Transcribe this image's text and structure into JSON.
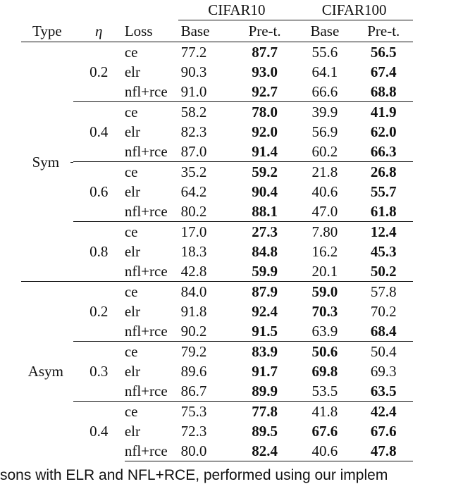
{
  "table": {
    "groups": [
      "CIFAR10",
      "CIFAR100"
    ],
    "headers": {
      "type": "Type",
      "eta": "η",
      "loss": "Loss",
      "c10_base": "Base",
      "c10_pre": "Pre-t.",
      "c100_base": "Base",
      "c100_pre": "Pre-t."
    },
    "sym": {
      "label": "Sym",
      "blocks": [
        {
          "eta": "0.2",
          "rows": [
            {
              "loss": "ce",
              "v": [
                "77.2",
                "87.7",
                "55.6",
                "56.5"
              ],
              "bold": [
                false,
                true,
                false,
                true
              ]
            },
            {
              "loss": "elr",
              "v": [
                "90.3",
                "93.0",
                "64.1",
                "67.4"
              ],
              "bold": [
                false,
                true,
                false,
                true
              ]
            },
            {
              "loss": "nfl+rce",
              "v": [
                "91.0",
                "92.7",
                "66.6",
                "68.8"
              ],
              "bold": [
                false,
                true,
                false,
                true
              ]
            }
          ]
        },
        {
          "eta": "0.4",
          "rows": [
            {
              "loss": "ce",
              "v": [
                "58.2",
                "78.0",
                "39.9",
                "41.9"
              ],
              "bold": [
                false,
                true,
                false,
                true
              ]
            },
            {
              "loss": "elr",
              "v": [
                "82.3",
                "92.0",
                "56.9",
                "62.0"
              ],
              "bold": [
                false,
                true,
                false,
                true
              ]
            },
            {
              "loss": "nfl+rce",
              "v": [
                "87.0",
                "91.4",
                "60.2",
                "66.3"
              ],
              "bold": [
                false,
                true,
                false,
                true
              ]
            }
          ]
        },
        {
          "eta": "0.6",
          "rows": [
            {
              "loss": "ce",
              "v": [
                "35.2",
                "59.2",
                "21.8",
                "26.8"
              ],
              "bold": [
                false,
                true,
                false,
                true
              ]
            },
            {
              "loss": "elr",
              "v": [
                "64.2",
                "90.4",
                "40.6",
                "55.7"
              ],
              "bold": [
                false,
                true,
                false,
                true
              ]
            },
            {
              "loss": "nfl+rce",
              "v": [
                "80.2",
                "88.1",
                "47.0",
                "61.8"
              ],
              "bold": [
                false,
                true,
                false,
                true
              ]
            }
          ]
        },
        {
          "eta": "0.8",
          "rows": [
            {
              "loss": "ce",
              "v": [
                "17.0",
                "27.3",
                "7.80",
                "12.4"
              ],
              "bold": [
                false,
                true,
                false,
                true
              ]
            },
            {
              "loss": "elr",
              "v": [
                "18.3",
                "84.8",
                "16.2",
                "45.3"
              ],
              "bold": [
                false,
                true,
                false,
                true
              ]
            },
            {
              "loss": "nfl+rce",
              "v": [
                "42.8",
                "59.9",
                "20.1",
                "50.2"
              ],
              "bold": [
                false,
                true,
                false,
                true
              ]
            }
          ]
        }
      ]
    },
    "asym": {
      "label": "Asym",
      "blocks": [
        {
          "eta": "0.2",
          "rows": [
            {
              "loss": "ce",
              "v": [
                "84.0",
                "87.9",
                "59.0",
                "57.8"
              ],
              "bold": [
                false,
                true,
                true,
                false
              ]
            },
            {
              "loss": "elr",
              "v": [
                "91.8",
                "92.4",
                "70.3",
                "70.2"
              ],
              "bold": [
                false,
                true,
                true,
                false
              ]
            },
            {
              "loss": "nfl+rce",
              "v": [
                "90.2",
                "91.5",
                "63.9",
                "68.4"
              ],
              "bold": [
                false,
                true,
                false,
                true
              ]
            }
          ]
        },
        {
          "eta": "0.3",
          "rows": [
            {
              "loss": "ce",
              "v": [
                "79.2",
                "83.9",
                "50.6",
                "50.4"
              ],
              "bold": [
                false,
                true,
                true,
                false
              ]
            },
            {
              "loss": "elr",
              "v": [
                "89.6",
                "91.7",
                "69.8",
                "69.3"
              ],
              "bold": [
                false,
                true,
                true,
                false
              ]
            },
            {
              "loss": "nfl+rce",
              "v": [
                "86.7",
                "89.9",
                "53.5",
                "63.5"
              ],
              "bold": [
                false,
                true,
                false,
                true
              ]
            }
          ]
        },
        {
          "eta": "0.4",
          "rows": [
            {
              "loss": "ce",
              "v": [
                "75.3",
                "77.8",
                "41.8",
                "42.4"
              ],
              "bold": [
                false,
                true,
                false,
                true
              ]
            },
            {
              "loss": "elr",
              "v": [
                "72.3",
                "89.5",
                "67.6",
                "67.6"
              ],
              "bold": [
                false,
                true,
                true,
                true
              ]
            },
            {
              "loss": "nfl+rce",
              "v": [
                "80.0",
                "82.4",
                "40.6",
                "47.8"
              ],
              "bold": [
                false,
                true,
                false,
                true
              ]
            }
          ]
        }
      ]
    }
  },
  "caption": "sons with ELR and NFL+RCE, performed using our implem"
}
